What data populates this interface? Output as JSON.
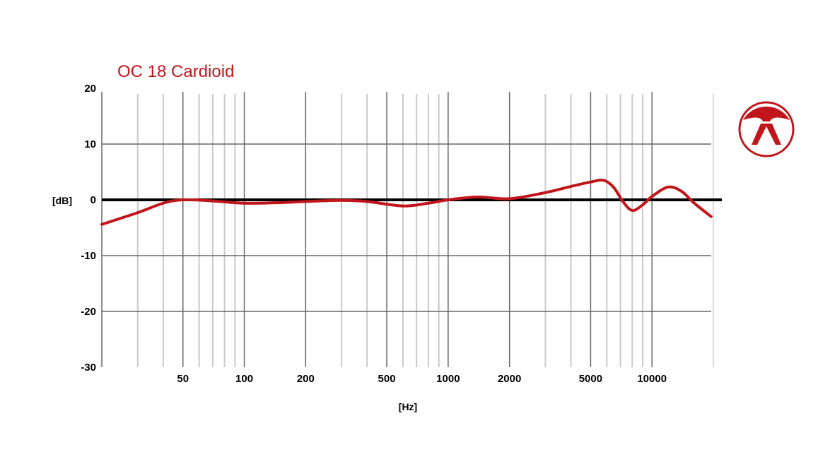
{
  "chart_data": {
    "type": "line",
    "title": "OC 18 Cardioid",
    "xlabel": "[Hz]",
    "ylabel": "[dB]",
    "xscale": "log",
    "xlim": [
      20,
      20000
    ],
    "ylim": [
      -30,
      20
    ],
    "x_ticks": [
      50,
      100,
      200,
      500,
      1000,
      2000,
      5000,
      10000
    ],
    "x_tick_labels": [
      "50",
      "100",
      "200",
      "500",
      "1000",
      "2000",
      "5000",
      "10000"
    ],
    "y_ticks": [
      20,
      10,
      0,
      -10,
      -20,
      -30
    ],
    "y_tick_labels": [
      "20",
      "10",
      "0",
      "-10",
      "-20",
      "-30"
    ],
    "grid": true,
    "reference_line": 0,
    "series": [
      {
        "color": "#c0161b",
        "x": [
          20,
          30,
          40,
          50,
          70,
          100,
          150,
          200,
          300,
          400,
          600,
          800,
          1000,
          1400,
          2000,
          3000,
          4000,
          5000,
          5800,
          6500,
          7200,
          8000,
          9000,
          10000,
          12000,
          14000,
          16000,
          19500
        ],
        "y": [
          -4.4,
          -2.3,
          -0.6,
          0,
          -0.2,
          -0.6,
          -0.5,
          -0.3,
          -0.1,
          -0.3,
          -1.1,
          -0.6,
          0,
          0.5,
          0.2,
          1.3,
          2.4,
          3.2,
          3.5,
          2.2,
          -0.3,
          -1.9,
          -0.9,
          0.6,
          2.3,
          1.5,
          -0.5,
          -3.0
        ]
      }
    ]
  },
  "brand": {
    "logo": "austrian-audio-logo",
    "color": "#c0161b"
  }
}
